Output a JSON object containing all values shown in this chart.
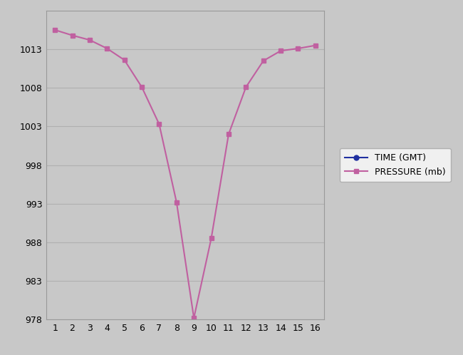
{
  "x": [
    1,
    2,
    3,
    4,
    5,
    6,
    7,
    8,
    9,
    10,
    11,
    12,
    13,
    14,
    15,
    16
  ],
  "pressure": [
    1015.5,
    1014.8,
    1014.2,
    1013.1,
    1011.6,
    1008.1,
    1003.3,
    993.2,
    978.2,
    988.5,
    1002.0,
    1008.1,
    1011.5,
    1012.8,
    1013.1,
    1013.5
  ],
  "line_color": "#c060a0",
  "marker_color": "#c060a0",
  "marker_style": "s",
  "legend_line1_color": "#2030a0",
  "legend_line1_label": "TIME (GMT)",
  "legend_line1_marker": "o",
  "legend_line2_label": "PRESSURE (mb)",
  "xlim": [
    0.5,
    16.5
  ],
  "ylim": [
    978,
    1018
  ],
  "yticks": [
    978,
    983,
    988,
    993,
    998,
    1003,
    1008,
    1013
  ],
  "xticks": [
    1,
    2,
    3,
    4,
    5,
    6,
    7,
    8,
    9,
    10,
    11,
    12,
    13,
    14,
    15,
    16
  ],
  "fig_bg_color": "#c8c8c8",
  "plot_bg_color": "#c8c8c8",
  "grid_color": "#b0b0b0",
  "legend_bg": "#f0f0f0",
  "legend_edge": "#b0b0b0"
}
